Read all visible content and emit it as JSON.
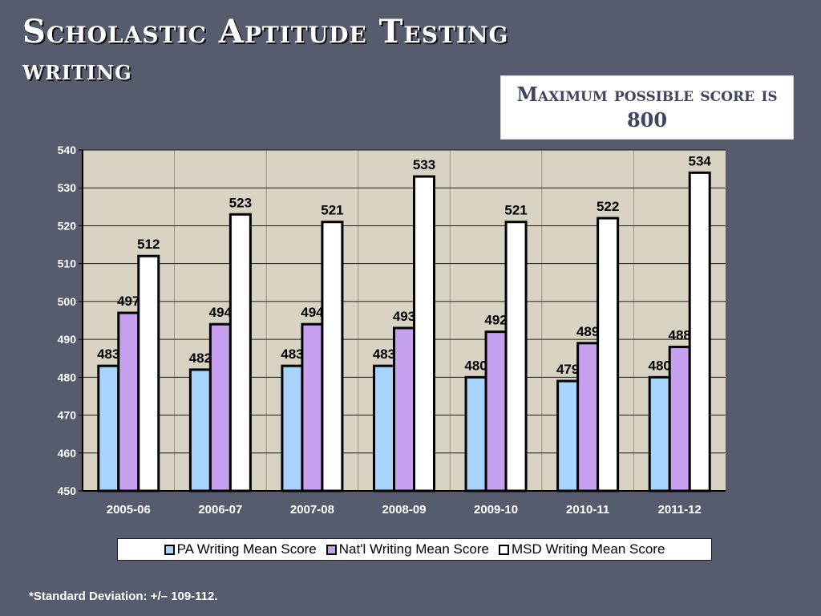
{
  "slide": {
    "title": "Scholastic Aptitude Testing",
    "subtitle": "writing",
    "note": "Maximum possible score is 800",
    "footnote": "*Standard Deviation: +/– 109-112."
  },
  "chart_data": {
    "type": "bar",
    "categories": [
      "2005-06",
      "2006-07",
      "2007-08",
      "2008-09",
      "2009-10",
      "2010-11",
      "2011-12"
    ],
    "series": [
      {
        "name": "PA Writing Mean Score",
        "color": "#a8d4fb",
        "values": [
          483,
          482,
          483,
          483,
          480,
          479,
          480
        ]
      },
      {
        "name": "Nat'l Writing Mean Score",
        "color": "#c8a0f0",
        "values": [
          497,
          494,
          494,
          493,
          492,
          489,
          488
        ]
      },
      {
        "name": "MSD Writing Mean Score",
        "color": "#ffffff",
        "values": [
          512,
          523,
          521,
          533,
          521,
          522,
          534
        ]
      }
    ],
    "ylim": [
      450,
      540
    ],
    "yticks": [
      450,
      460,
      470,
      480,
      490,
      500,
      510,
      520,
      530,
      540
    ],
    "grid": true,
    "legend_position": "bottom",
    "plot_background": "#d9d3c4"
  }
}
